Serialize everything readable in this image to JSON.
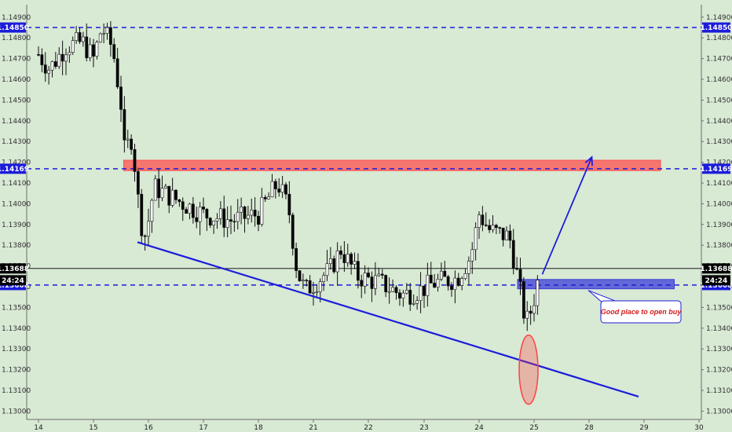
{
  "chart_data": {
    "type": "candlestick",
    "ylim": [
      1.1296,
      1.1496
    ],
    "y_ticks": [
      "1.14900",
      "1.14800",
      "1.14700",
      "1.14600",
      "1.14500",
      "1.14400",
      "1.14300",
      "1.14200",
      "1.14100",
      "1.14000",
      "1.13900",
      "1.13800",
      "1.13700",
      "1.13600",
      "1.13500",
      "1.13400",
      "1.13300",
      "1.13200",
      "1.13100",
      "1.13000"
    ],
    "x_ticks": [
      {
        "label": "14",
        "day": 0
      },
      {
        "label": "15",
        "day": 1
      },
      {
        "label": "16",
        "day": 2
      },
      {
        "label": "17",
        "day": 3
      },
      {
        "label": "18",
        "day": 4
      },
      {
        "label": "21",
        "day": 5
      },
      {
        "label": "22",
        "day": 6
      },
      {
        "label": "23",
        "day": 7
      },
      {
        "label": "24",
        "day": 8
      },
      {
        "label": "25",
        "day": 9
      },
      {
        "label": "28",
        "day": 10
      },
      {
        "label": "29",
        "day": 11
      },
      {
        "label": "30",
        "day": 12
      }
    ],
    "price_path": [
      [
        0.0,
        1.1472
      ],
      [
        0.2,
        1.1465
      ],
      [
        0.5,
        1.1476
      ],
      [
        0.8,
        1.1478
      ],
      [
        1.0,
        1.147
      ],
      [
        1.15,
        1.1485
      ],
      [
        1.35,
        1.1475
      ],
      [
        1.5,
        1.1448
      ],
      [
        1.55,
        1.1425
      ],
      [
        1.7,
        1.1432
      ],
      [
        1.85,
        1.1392
      ],
      [
        1.95,
        1.1384
      ],
      [
        2.1,
        1.1408
      ],
      [
        2.5,
        1.1402
      ],
      [
        3.0,
        1.1395
      ],
      [
        3.5,
        1.1392
      ],
      [
        4.0,
        1.1395
      ],
      [
        4.35,
        1.141
      ],
      [
        4.55,
        1.1398
      ],
      [
        4.7,
        1.1368
      ],
      [
        4.85,
        1.1358
      ],
      [
        5.3,
        1.1368
      ],
      [
        5.5,
        1.1378
      ],
      [
        5.8,
        1.1365
      ],
      [
        6.2,
        1.1362
      ],
      [
        6.6,
        1.1356
      ],
      [
        6.9,
        1.1358
      ],
      [
        7.2,
        1.1362
      ],
      [
        7.6,
        1.1364
      ],
      [
        7.85,
        1.1375
      ],
      [
        8.0,
        1.1395
      ],
      [
        8.2,
        1.1387
      ],
      [
        8.55,
        1.1384
      ],
      [
        8.72,
        1.1362
      ],
      [
        8.85,
        1.1342
      ],
      [
        8.95,
        1.1349
      ],
      [
        9.05,
        1.136
      ],
      [
        9.1,
        1.13688
      ]
    ],
    "current_price": "1.13688",
    "current_time": "24:24",
    "price_lines": [
      {
        "label": "1.14850",
        "value": 1.1485,
        "color": "#1c1cdb",
        "style": "dashed"
      },
      {
        "label": "1.14169",
        "value": 1.14169,
        "color": "#1c1cdb",
        "style": "dashed"
      },
      {
        "label": "1.13608",
        "value": 1.13608,
        "color": "#1c1cdb",
        "style": "dashed"
      },
      {
        "label": "1.13688",
        "value": 1.13688,
        "color": "#000000",
        "style": "solid"
      }
    ],
    "zones": [
      {
        "name": "resistance-zone",
        "day_from": 1.55,
        "day_to": 11.3,
        "y_from": 1.1416,
        "y_to": 1.1421,
        "color": "#ff4d4d"
      },
      {
        "name": "buy-zone",
        "day_from": 8.7,
        "day_to": 11.55,
        "y_from": 1.1359,
        "y_to": 1.13635,
        "color": "#3c3cd8"
      }
    ],
    "trendline": {
      "day_from": 1.8,
      "y_from": 1.13815,
      "day_to": 10.9,
      "y_to": 1.1307,
      "color": "#1c1cdb"
    },
    "target_arrow": {
      "day_from": 9.15,
      "y_from": 1.1366,
      "day_to": 10.05,
      "y_to": 1.14225,
      "color": "#1c1cdb"
    },
    "highlight_ellipse": {
      "day_center": 8.9,
      "y_center": 1.132,
      "color": "#ff4040"
    },
    "annotation": {
      "text": "Good place to open buy",
      "color": "#d21d1d",
      "border": "#1c1cdb"
    },
    "grid": false,
    "colors": {
      "background": "#d8e9d4",
      "candle_up": "#ffffff",
      "candle_down": "#000000"
    }
  }
}
